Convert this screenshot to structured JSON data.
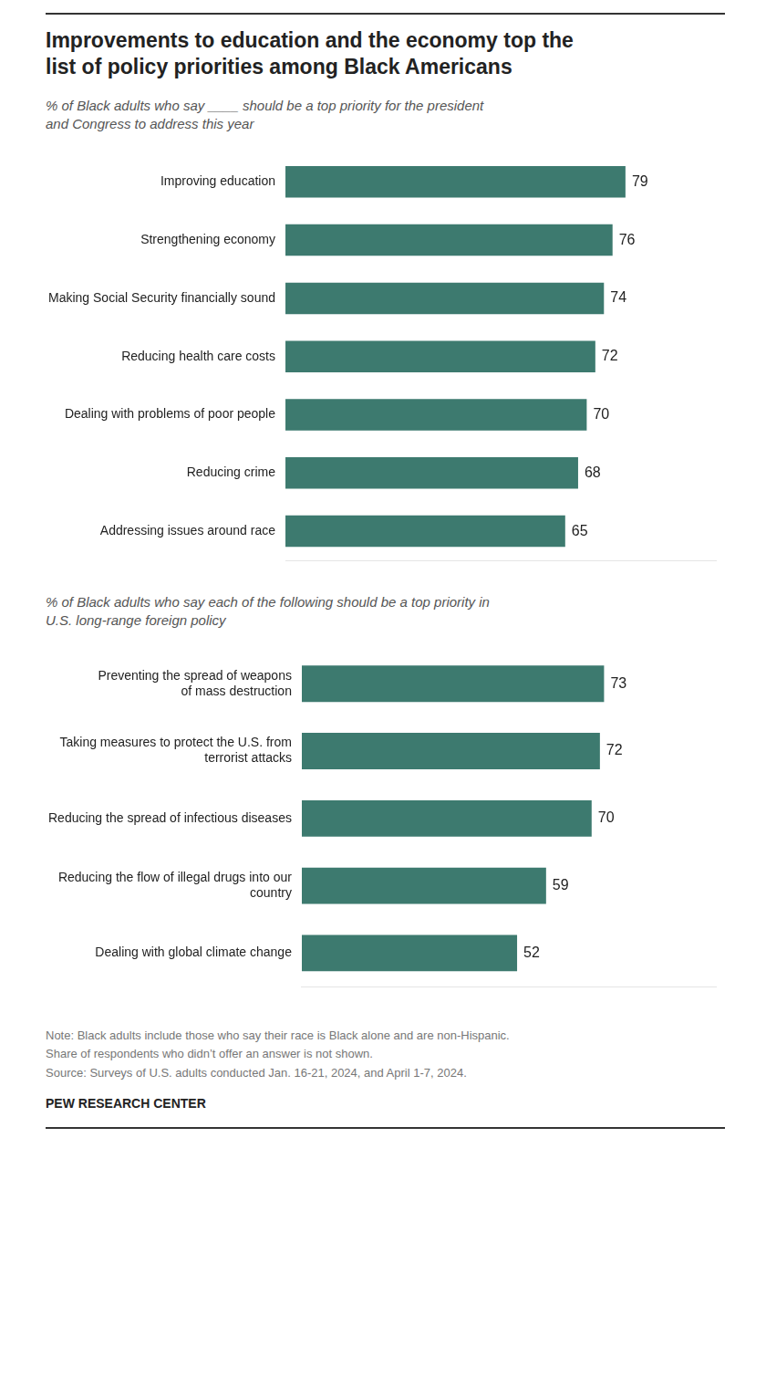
{
  "title": "Improvements to education and the economy top the\nlist of policy priorities among Black Americans",
  "notes": [
    "Note: Black adults include those who say their race is Black alone and are non-Hispanic.",
    "Share of respondents who didn’t offer an answer is not shown.",
    "Source: Surveys of U.S. adults conducted Jan. 16-21, 2024, and April 1-7, 2024."
  ],
  "source": "PEW RESEARCH CENTER",
  "chart_data": [
    {
      "type": "bar",
      "orientation": "horizontal",
      "subtitle": "% of Black adults who say ____ should be a top priority for the president\nand Congress to address this year",
      "categories": [
        "Improving education",
        "Strengthening economy",
        "Making Social Security financially sound",
        "Reducing health care costs",
        "Dealing with problems of poor people",
        "Reducing crime",
        "Addressing issues around race"
      ],
      "values": [
        79,
        76,
        74,
        72,
        70,
        68,
        65
      ],
      "color": "#3d7a6f",
      "xlim": [
        0,
        100
      ],
      "grid": false,
      "data_labels": true,
      "tick_labels": "y"
    },
    {
      "type": "bar",
      "orientation": "horizontal",
      "subtitle": "% of Black adults who say each of the following should be a top priority in\nU.S. long-range foreign policy",
      "categories": [
        "Preventing the spread of weapons\nof mass destruction",
        "Taking measures to protect the U.S. from\nterrorist attacks",
        "Reducing the spread of infectious diseases",
        "Reducing the flow of illegal drugs into our\ncountry",
        "Dealing with global climate change"
      ],
      "values": [
        73,
        72,
        70,
        59,
        52
      ],
      "color": "#3d7a6f",
      "xlim": [
        0,
        100
      ],
      "grid": false,
      "data_labels": true,
      "tick_labels": "y"
    }
  ]
}
